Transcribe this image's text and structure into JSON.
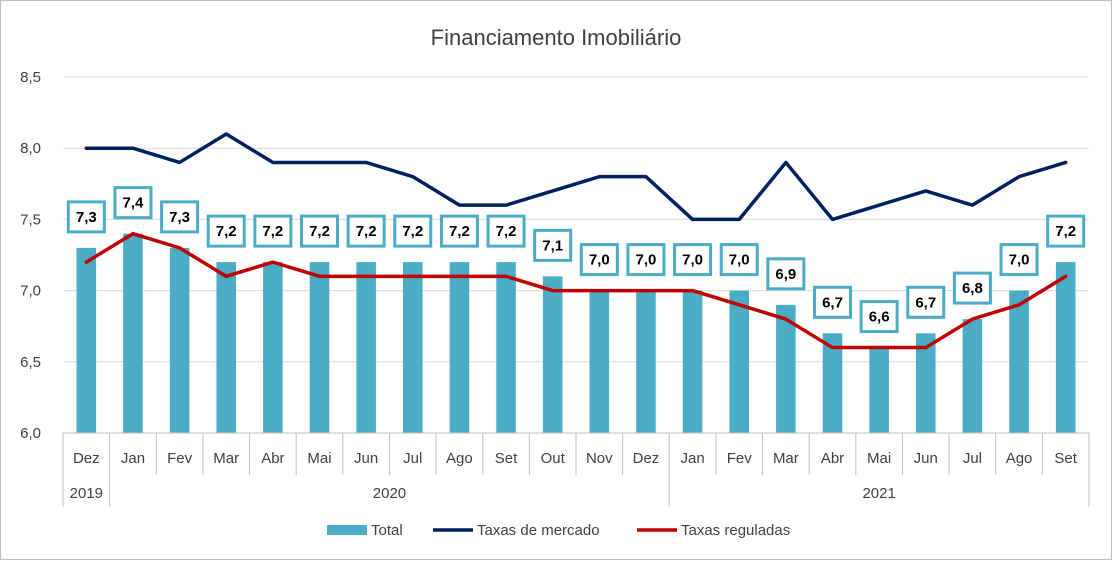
{
  "chart_data": {
    "type": "bar",
    "title": "Financiamento Imobiliário",
    "categories": [
      "Dez",
      "Jan",
      "Fev",
      "Mar",
      "Abr",
      "Mai",
      "Jun",
      "Jul",
      "Ago",
      "Set",
      "Out",
      "Nov",
      "Dez",
      "Jan",
      "Fev",
      "Mar",
      "Abr",
      "Mai",
      "Jun",
      "Jul",
      "Ago",
      "Set"
    ],
    "year_groups": [
      {
        "label": "2019",
        "count": 1
      },
      {
        "label": "2020",
        "count": 12
      },
      {
        "label": "2021",
        "count": 9
      }
    ],
    "ylim": [
      6.0,
      8.5
    ],
    "yticks": [
      "6,0",
      "6,5",
      "7,0",
      "7,5",
      "8,0",
      "8,5"
    ],
    "grid": true,
    "legend_position": "bottom",
    "series": [
      {
        "name": "Total",
        "type": "bar",
        "color": "#4bacc6",
        "values": [
          7.3,
          7.4,
          7.3,
          7.2,
          7.2,
          7.2,
          7.2,
          7.2,
          7.2,
          7.2,
          7.1,
          7.0,
          7.0,
          7.0,
          7.0,
          6.9,
          6.7,
          6.6,
          6.7,
          6.8,
          7.0,
          7.2
        ],
        "labels": [
          "7,3",
          "7,4",
          "7,3",
          "7,2",
          "7,2",
          "7,2",
          "7,2",
          "7,2",
          "7,2",
          "7,2",
          "7,1",
          "7,0",
          "7,0",
          "7,0",
          "7,0",
          "6,9",
          "6,7",
          "6,6",
          "6,7",
          "6,8",
          "7,0",
          "7,2"
        ]
      },
      {
        "name": "Taxas de mercado",
        "type": "line",
        "color": "#002060",
        "values": [
          8.0,
          8.0,
          7.9,
          8.1,
          7.9,
          7.9,
          7.9,
          7.8,
          7.6,
          7.6,
          7.7,
          7.8,
          7.8,
          7.5,
          7.5,
          7.9,
          7.5,
          7.6,
          7.7,
          7.6,
          7.8,
          7.9
        ]
      },
      {
        "name": "Taxas reguladas",
        "type": "line",
        "color": "#c00000",
        "values": [
          7.2,
          7.4,
          7.3,
          7.1,
          7.2,
          7.1,
          7.1,
          7.1,
          7.1,
          7.1,
          7.0,
          7.0,
          7.0,
          7.0,
          6.9,
          6.8,
          6.6,
          6.6,
          6.6,
          6.8,
          6.9,
          7.1
        ]
      }
    ]
  }
}
